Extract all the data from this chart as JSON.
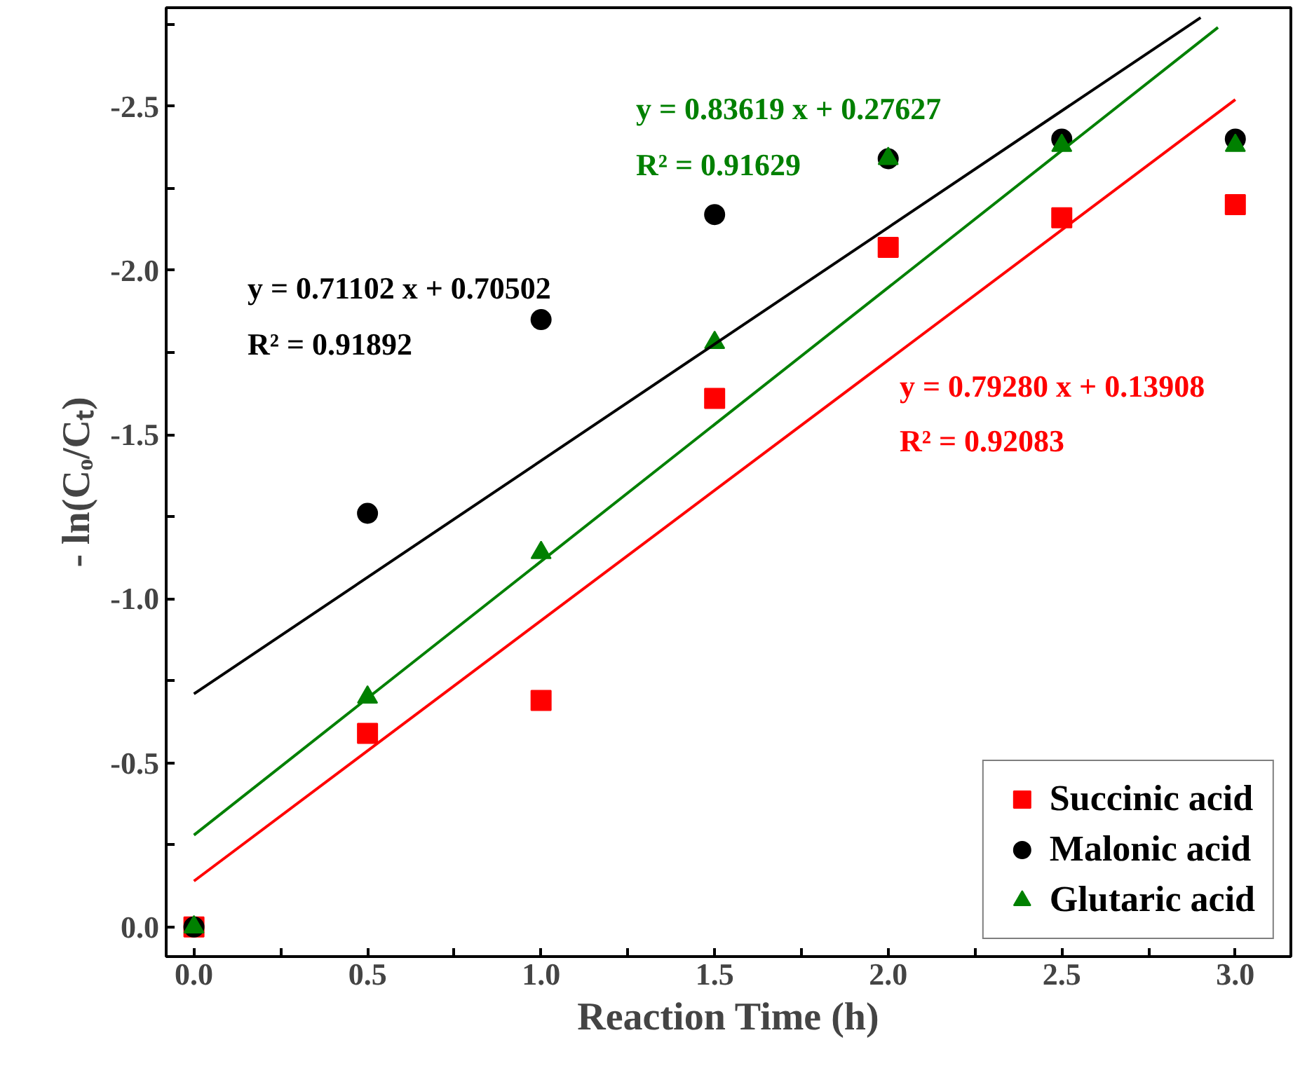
{
  "chart_data": {
    "type": "scatter",
    "xlabel": "Reaction Time (h)",
    "ylabel": "- ln(Cₒ/Cₜ)",
    "x": [
      0,
      0.5,
      1,
      1.5,
      2,
      2.5,
      3
    ],
    "series": [
      {
        "name": "Succinic acid",
        "color": "#ff0000",
        "marker": "square",
        "values": [
          0,
          -0.59,
          -0.69,
          -1.61,
          -2.07,
          -2.16,
          -2.2
        ]
      },
      {
        "name": "Malonic acid",
        "color": "#000000",
        "marker": "circle",
        "values": [
          0,
          -1.26,
          -1.85,
          -2.17,
          -2.34,
          -2.4,
          -2.4
        ]
      },
      {
        "name": "Glutaric acid",
        "color": "#008000",
        "marker": "triangle",
        "values": [
          0,
          -0.7,
          -1.14,
          -1.78,
          -2.34,
          -2.38,
          -2.38
        ]
      },
      {
        "type": "line",
        "color": "#ff0000",
        "x": [
          0,
          3
        ],
        "values": [
          -0.14,
          -2.52
        ]
      },
      {
        "type": "line",
        "color": "#000000",
        "x": [
          0,
          2.9
        ],
        "values": [
          -0.71,
          -2.77
        ]
      },
      {
        "type": "line",
        "color": "#008000",
        "x": [
          0,
          2.95
        ],
        "values": [
          -0.28,
          -2.74
        ]
      }
    ],
    "annotations": [
      "y = 0.79280 x + 0.13908",
      "R² = 0.92083",
      "y = 0.71102 x + 0.70502",
      "R² = 0.91892",
      "y = 0.83619 x + 0.27627",
      "R² = 0.91629"
    ],
    "xlim": [
      -0.08,
      3.16
    ],
    "ylim": [
      0.09,
      -2.8
    ],
    "xticks": [
      {
        "value": 0,
        "label": "0.0"
      },
      {
        "value": 0.25,
        "label": null
      },
      {
        "value": 0.5,
        "label": "0.5"
      },
      {
        "value": 0.75,
        "label": null
      },
      {
        "value": 1,
        "label": "1.0"
      },
      {
        "value": 1.25,
        "label": null
      },
      {
        "value": 1.5,
        "label": "1.5"
      },
      {
        "value": 1.75,
        "label": null
      },
      {
        "value": 2,
        "label": "2.0"
      },
      {
        "value": 2.25,
        "label": null
      },
      {
        "value": 2.5,
        "label": "2.5"
      },
      {
        "value": 2.75,
        "label": null
      },
      {
        "value": 3,
        "label": "3.0"
      }
    ],
    "yticks": [
      {
        "value": 0,
        "label": "0.0"
      },
      {
        "value": -0.25,
        "label": null
      },
      {
        "value": -0.5,
        "label": "-0.5"
      },
      {
        "value": -0.75,
        "label": null
      },
      {
        "value": -1,
        "label": "-1.0"
      },
      {
        "value": -1.25,
        "label": null
      },
      {
        "value": -1.5,
        "label": "-1.5"
      },
      {
        "value": -1.75,
        "label": null
      },
      {
        "value": -2,
        "label": "-2.0"
      },
      {
        "value": -2.25,
        "label": null
      },
      {
        "value": -2.5,
        "label": "-2.5"
      },
      {
        "value": -2.75,
        "label": null
      }
    ],
    "legend": "bottom right",
    "grid": false
  }
}
